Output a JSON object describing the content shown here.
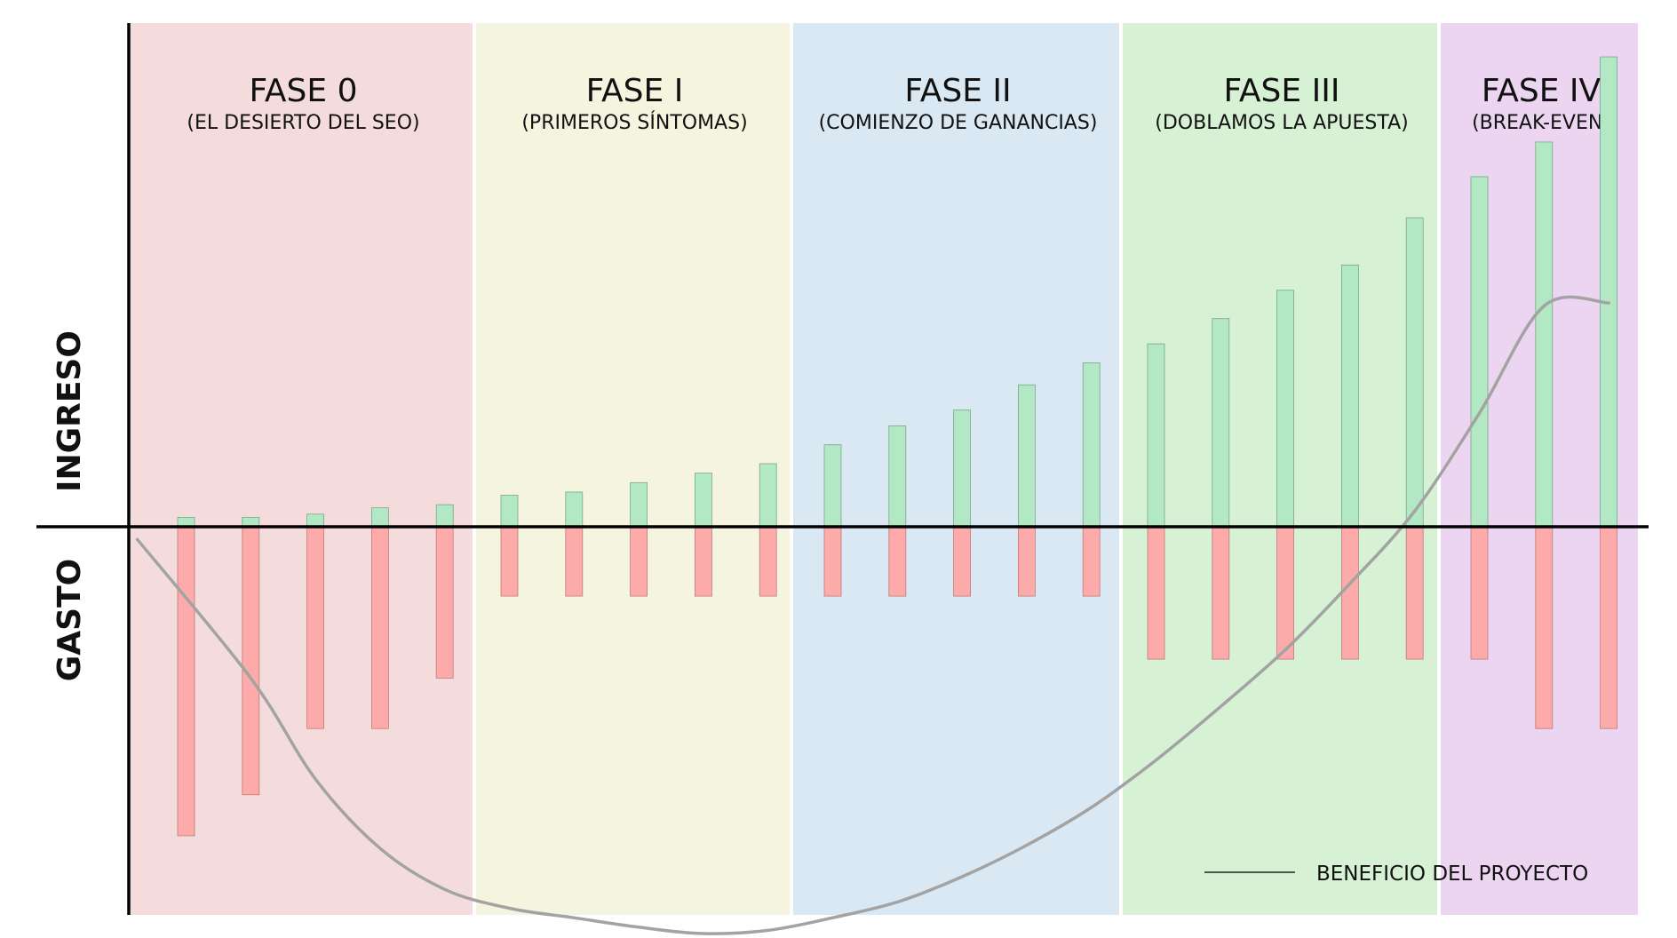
{
  "chart_data": {
    "type": "bar",
    "y_axis_labels": {
      "positive": "INGRESO",
      "negative": "GASTO"
    },
    "ylim": [
      -130,
      160
    ],
    "phases": [
      {
        "title": "FASE 0",
        "subtitle": "(EL DESIERTO DEL SEO)",
        "color": "#f5dcdc",
        "bars": 5
      },
      {
        "title": "FASE I",
        "subtitle": "(PRIMEROS SÍNTOMAS)",
        "color": "#f5f5df",
        "bars": 5
      },
      {
        "title": "FASE II",
        "subtitle": "(COMIENZO DE GANANCIAS)",
        "color": "#d9e8f3",
        "bars": 5
      },
      {
        "title": "FASE III",
        "subtitle": "(DOBLAMOS LA APUESTA)",
        "color": "#d6f1d3",
        "bars": 5
      },
      {
        "title": "FASE IV",
        "subtitle": "(BREAK-EVEN)",
        "color": "#ecd5f1",
        "bars": 3
      }
    ],
    "series": [
      {
        "name": "Ingreso",
        "color": "#b2e8c4",
        "values": [
          3,
          3,
          4,
          6,
          7,
          10,
          11,
          14,
          17,
          20,
          26,
          32,
          37,
          45,
          52,
          58,
          66,
          75,
          83,
          98,
          111,
          122,
          149
        ]
      },
      {
        "name": "Gasto",
        "color": "#fdaaaa",
        "values": [
          -98,
          -85,
          -64,
          -64,
          -48,
          -22,
          -22,
          -22,
          -22,
          -22,
          -22,
          -22,
          -22,
          -22,
          -22,
          -42,
          -42,
          -42,
          -42,
          -42,
          -42,
          -64,
          -64
        ]
      }
    ],
    "profit_curve": {
      "name": "BENEFICIO DEL PROYECTO",
      "color": "#a3a3a3",
      "x": [
        0,
        1,
        2,
        3,
        4,
        5,
        6,
        7,
        8,
        9,
        10,
        11,
        12,
        13,
        14,
        15,
        16,
        17,
        18,
        19,
        20,
        21,
        22
      ],
      "y": [
        -4,
        -48,
        -80,
        -102,
        -115,
        -121,
        -124,
        -127,
        -129,
        -128,
        -124,
        -119,
        -111,
        -101,
        -89,
        -74,
        -57,
        -39,
        -18,
        5,
        36,
        70,
        71
      ]
    },
    "legend": {
      "label": "BENEFICIO DEL PROYECTO",
      "position": "bottom-right"
    }
  }
}
